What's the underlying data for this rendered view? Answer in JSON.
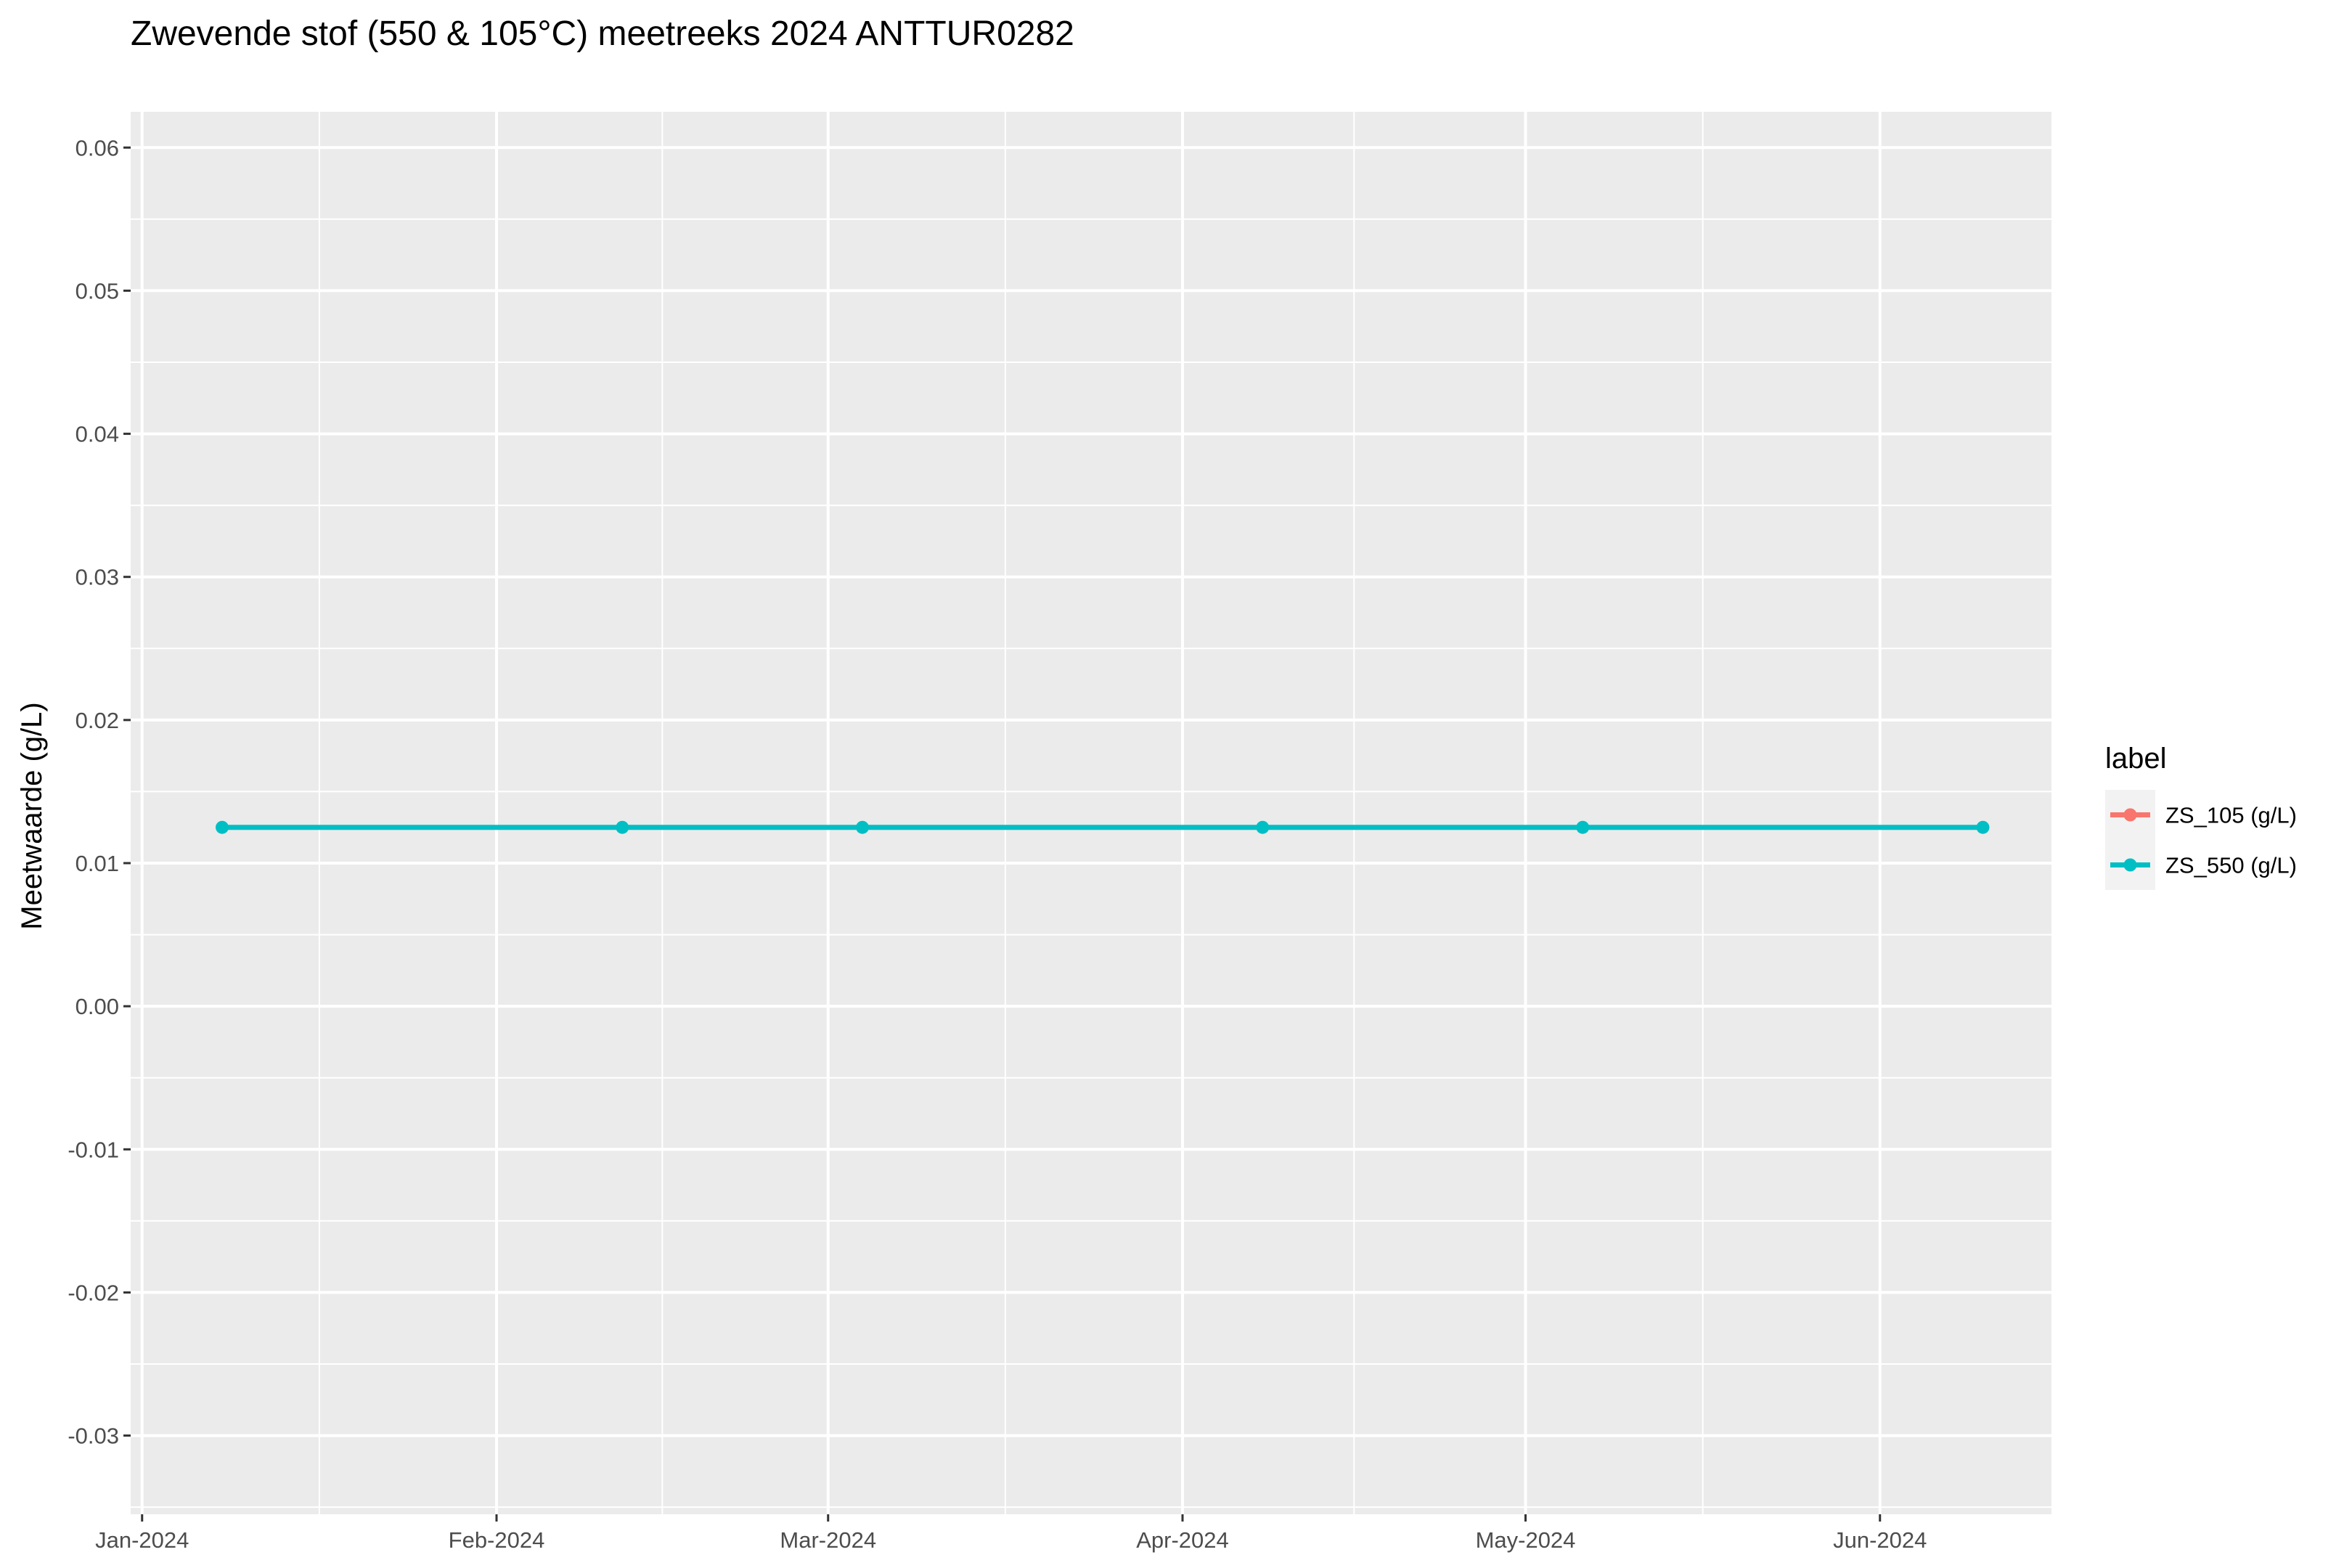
{
  "chart_data": {
    "type": "line",
    "title": "Zwevende stof (550 & 105°C) meetreeks 2024 ANTTUR0282",
    "xlabel": "",
    "ylabel": "Meetwaarde (g/L)",
    "x_ticks": [
      "Jan-2024",
      "Feb-2024",
      "Mar-2024",
      "Apr-2024",
      "May-2024",
      "Jun-2024"
    ],
    "x_tick_dates": [
      "2024-01-01",
      "2024-02-01",
      "2024-03-01",
      "2024-04-01",
      "2024-05-01",
      "2024-06-01"
    ],
    "xlim": [
      "2023-12-31",
      "2024-06-16"
    ],
    "y_ticks": [
      "-0.03",
      "-0.02",
      "-0.01",
      "0.00",
      "0.01",
      "0.02",
      "0.03",
      "0.04",
      "0.05",
      "0.06"
    ],
    "ylim": [
      -0.0355,
      0.0625
    ],
    "grid": true,
    "legend": {
      "title": "label",
      "position": "right"
    },
    "series": [
      {
        "name": "ZS_105 (g/L)",
        "color": "#F8766D",
        "x": [],
        "values": []
      },
      {
        "name": "ZS_550 (g/L)",
        "color": "#00BFC4",
        "x": [
          "2024-01-08",
          "2024-02-12",
          "2024-03-04",
          "2024-04-08",
          "2024-05-06",
          "2024-06-10"
        ],
        "values": [
          0.0125,
          0.0125,
          0.0125,
          0.0125,
          0.0125,
          0.0125
        ]
      }
    ]
  }
}
